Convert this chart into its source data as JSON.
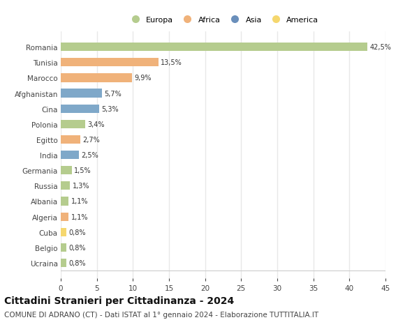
{
  "categories": [
    "Romania",
    "Tunisia",
    "Marocco",
    "Afghanistan",
    "Cina",
    "Polonia",
    "Egitto",
    "India",
    "Germania",
    "Russia",
    "Albania",
    "Algeria",
    "Cuba",
    "Belgio",
    "Ucraina"
  ],
  "values": [
    42.5,
    13.5,
    9.9,
    5.7,
    5.3,
    3.4,
    2.7,
    2.5,
    1.5,
    1.3,
    1.1,
    1.1,
    0.8,
    0.8,
    0.8
  ],
  "labels": [
    "42,5%",
    "13,5%",
    "9,9%",
    "5,7%",
    "5,3%",
    "3,4%",
    "2,7%",
    "2,5%",
    "1,5%",
    "1,3%",
    "1,1%",
    "1,1%",
    "0,8%",
    "0,8%",
    "0,8%"
  ],
  "colors": [
    "#b5cc8e",
    "#f0b27a",
    "#f0b27a",
    "#7fa8c9",
    "#7fa8c9",
    "#b5cc8e",
    "#f0b27a",
    "#7fa8c9",
    "#b5cc8e",
    "#b5cc8e",
    "#b5cc8e",
    "#f0b27a",
    "#f5d76e",
    "#b5cc8e",
    "#b5cc8e"
  ],
  "legend": [
    {
      "label": "Europa",
      "color": "#b5cc8e"
    },
    {
      "label": "Africa",
      "color": "#f0b27a"
    },
    {
      "label": "Asia",
      "color": "#6a8fbb"
    },
    {
      "label": "America",
      "color": "#f5d76e"
    }
  ],
  "xlim": [
    0,
    45
  ],
  "xticks": [
    0,
    5,
    10,
    15,
    20,
    25,
    30,
    35,
    40,
    45
  ],
  "title": "Cittadini Stranieri per Cittadinanza - 2024",
  "subtitle": "COMUNE DI ADRANO (CT) - Dati ISTAT al 1° gennaio 2024 - Elaborazione TUTTITALIA.IT",
  "title_fontsize": 10,
  "subtitle_fontsize": 7.5,
  "background_color": "#ffffff",
  "grid_color": "#e8e8e8",
  "bar_height": 0.55,
  "label_fontsize": 7,
  "ytick_fontsize": 7.5,
  "xtick_fontsize": 7.5,
  "legend_fontsize": 8
}
